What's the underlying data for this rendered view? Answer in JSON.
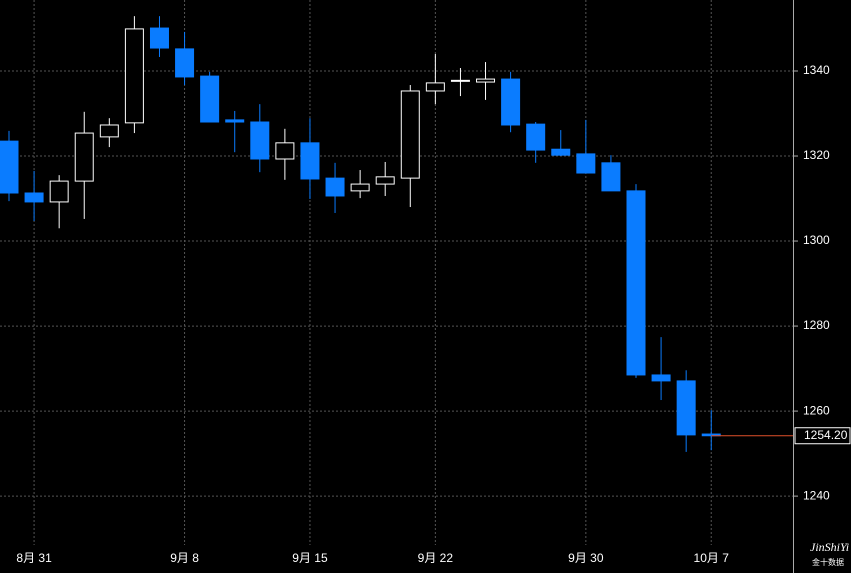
{
  "chart_data": {
    "type": "candlestick",
    "categories": [
      null,
      "8月 31",
      null,
      null,
      null,
      null,
      null,
      "9月 8",
      null,
      null,
      null,
      null,
      "9月 15",
      null,
      null,
      null,
      null,
      "9月 22",
      null,
      null,
      null,
      null,
      null,
      "9月 30",
      null,
      null,
      null,
      null,
      "10月 7"
    ],
    "open": [
      1323.5,
      1311.3,
      1309.2,
      1314.1,
      1324.5,
      1327.8,
      1350.1,
      1345.2,
      1338.8,
      1328.5,
      1328.0,
      1319.3,
      1323.1,
      1314.8,
      1311.8,
      1313.4,
      1314.8,
      1335.3,
      1337.6,
      1337.4,
      1338.1,
      1327.5,
      1321.6,
      1320.5,
      1318.4,
      1311.8,
      1268.5,
      1267.1,
      1254.6
    ],
    "high": [
      1325.9,
      1316.5,
      1315.5,
      1330.4,
      1328.9,
      1352.9,
      1352.9,
      1349.2,
      1339.8,
      1330.6,
      1332.2,
      1326.4,
      1328.9,
      1318.4,
      1316.7,
      1318.6,
      1336.7,
      1344.0,
      1340.7,
      1342.1,
      1339.8,
      1328.0,
      1326.1,
      1328.5,
      1320.2,
      1313.4,
      1277.4,
      1269.6,
      1260.2
    ],
    "low": [
      1309.4,
      1304.7,
      1303.0,
      1305.2,
      1322.1,
      1325.4,
      1343.3,
      1336.7,
      1328.0,
      1320.9,
      1316.2,
      1314.4,
      1309.9,
      1306.6,
      1310.1,
      1310.6,
      1308.0,
      1332.2,
      1334.1,
      1333.2,
      1325.6,
      1318.4,
      1320.0,
      1316.0,
      1311.8,
      1267.8,
      1262.6,
      1250.4,
      1250.8
    ],
    "close": [
      1311.3,
      1309.2,
      1314.1,
      1325.4,
      1327.3,
      1349.9,
      1345.4,
      1338.6,
      1328.0,
      1328.0,
      1319.3,
      1323.1,
      1314.6,
      1310.6,
      1313.4,
      1315.1,
      1335.3,
      1337.2,
      1337.8,
      1338.1,
      1327.3,
      1321.4,
      1320.2,
      1316.0,
      1311.8,
      1268.5,
      1267.1,
      1254.4,
      1254.2
    ],
    "up_color": "#000000",
    "down_color": "#0a7cff",
    "ylim": [
      1228.5,
      1356.7
    ],
    "yticks": [
      1240,
      1260,
      1280,
      1300,
      1320,
      1340
    ],
    "grid": true,
    "last_price": {
      "value": 1254.2,
      "label": "1254.20"
    },
    "last_price_color": "#e0502a",
    "logo": "JinShiYi",
    "logo_sub": "金十数据"
  }
}
